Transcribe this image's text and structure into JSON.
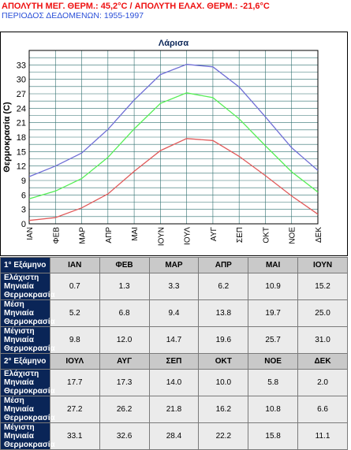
{
  "header": {
    "line1": "ΑΠΟΛΥΤΗ ΜΕΓ. ΘΕΡΜ.: 45,2°C / ΑΠΟΛΥΤΗ ΕΛΑΧ. ΘΕΡΜ.: -21,6°C",
    "line2": "ΠΕΡΙΟΔΟΣ ΔΕΔΟΜΕΝΩΝ: 1955-1997"
  },
  "chart_data": {
    "type": "line",
    "title": "Λάρισα",
    "ylabel": "Θερμοκρασία (C)",
    "xlabel": "",
    "categories": [
      "ΙΑΝ",
      "ΦΕΒ",
      "ΜΑΡ",
      "ΑΠΡ",
      "ΜΑΙ",
      "ΙΟΥΝ",
      "ΙΟΥΛ",
      "ΑΥΓ",
      "ΣΕΠ",
      "ΟΚΤ",
      "ΝΟΕ",
      "ΔΕΚ"
    ],
    "ylim": [
      0,
      36
    ],
    "yticks": [
      0,
      3,
      6,
      9,
      12,
      15,
      18,
      21,
      24,
      27,
      30,
      33
    ],
    "grid": true,
    "series": [
      {
        "color": "#e05a5a",
        "values": [
          0.7,
          1.3,
          3.3,
          6.2,
          10.9,
          15.2,
          17.7,
          17.3,
          14.0,
          10.0,
          5.8,
          2.0
        ]
      },
      {
        "color": "#55ee55",
        "values": [
          5.2,
          6.8,
          9.4,
          13.8,
          19.7,
          25.0,
          27.2,
          26.2,
          21.8,
          16.2,
          10.8,
          6.6
        ]
      },
      {
        "color": "#6f6fd6",
        "values": [
          9.8,
          12.0,
          14.7,
          19.6,
          25.7,
          31.0,
          33.1,
          32.6,
          28.4,
          22.2,
          15.8,
          11.1
        ]
      }
    ]
  },
  "table": {
    "sections": [
      {
        "label": "1° Εξάμηνο",
        "months": [
          "ΙΑΝ",
          "ΦΕΒ",
          "ΜΑΡ",
          "ΑΠΡ",
          "ΜΑΙ",
          "ΙΟΥΝ"
        ],
        "rows": [
          {
            "label": "Ελάχιστη Μηνιαία Θερμοκρασία",
            "values": [
              "0.7",
              "1.3",
              "3.3",
              "6.2",
              "10.9",
              "15.2"
            ]
          },
          {
            "label": "Μέση Μηνιαία Θερμοκρασία",
            "values": [
              "5.2",
              "6.8",
              "9.4",
              "13.8",
              "19.7",
              "25.0"
            ]
          },
          {
            "label": "Μέγιστη Μηνιαία Θερμοκρασία",
            "values": [
              "9.8",
              "12.0",
              "14.7",
              "19.6",
              "25.7",
              "31.0"
            ]
          }
        ]
      },
      {
        "label": "2° Εξάμηνο",
        "months": [
          "ΙΟΥΛ",
          "ΑΥΓ",
          "ΣΕΠ",
          "ΟΚΤ",
          "ΝΟΕ",
          "ΔΕΚ"
        ],
        "rows": [
          {
            "label": "Ελάχιστη Μηνιαία Θερμοκρασία",
            "values": [
              "17.7",
              "17.3",
              "14.0",
              "10.0",
              "5.8",
              "2.0"
            ]
          },
          {
            "label": "Μέση Μηνιαία Θερμοκρασία",
            "values": [
              "27.2",
              "26.2",
              "21.8",
              "16.2",
              "10.8",
              "6.6"
            ]
          },
          {
            "label": "Μέγιστη Μηνιαία Θερμοκρασία",
            "values": [
              "33.1",
              "32.6",
              "28.4",
              "22.2",
              "15.8",
              "11.1"
            ]
          }
        ]
      }
    ]
  }
}
